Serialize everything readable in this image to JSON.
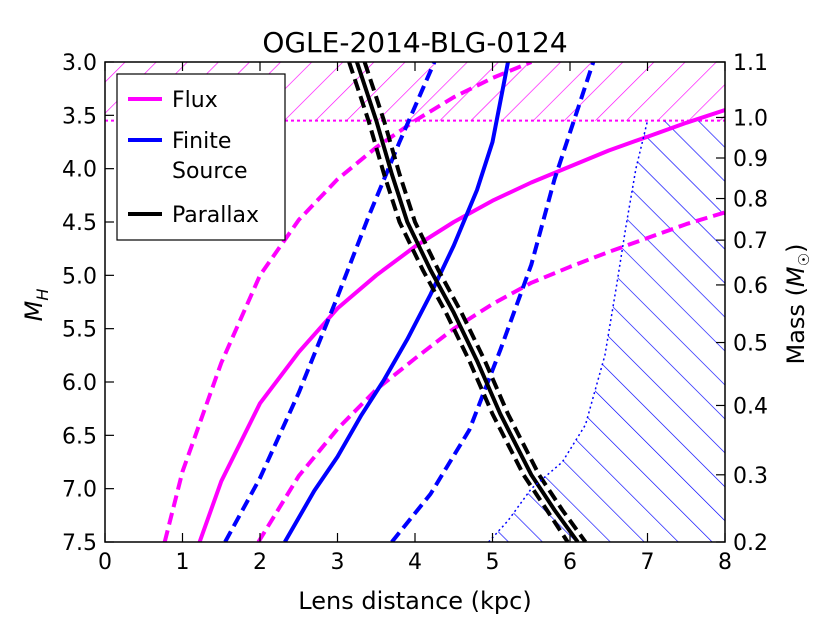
{
  "chart_data": {
    "type": "line",
    "title": "OGLE-2014-BLG-0124",
    "xlabel": "Lens distance (kpc)",
    "ylabel": "M",
    "ylabel_sub": "H",
    "y2label_text": "Mass (",
    "y2label_math": "M",
    "y2label_sub": "☉",
    "y2label_close": ")",
    "xlim": [
      0,
      8
    ],
    "ylim": [
      7.5,
      3.0
    ],
    "y_inverted": true,
    "xticks": [
      "0",
      "1",
      "2",
      "3",
      "4",
      "5",
      "6",
      "7",
      "8"
    ],
    "yticks": [
      "3.0",
      "3.5",
      "4.0",
      "4.5",
      "5.0",
      "5.5",
      "6.0",
      "6.5",
      "7.0",
      "7.5"
    ],
    "y2ticks": [
      {
        "label": "1.1",
        "mh": 3.0
      },
      {
        "label": "1.0",
        "mh": 3.52
      },
      {
        "label": "0.9",
        "mh": 3.9
      },
      {
        "label": "0.8",
        "mh": 4.28
      },
      {
        "label": "0.7",
        "mh": 4.67
      },
      {
        "label": "0.6",
        "mh": 5.09
      },
      {
        "label": "0.5",
        "mh": 5.63
      },
      {
        "label": "0.4",
        "mh": 6.22
      },
      {
        "label": "0.3",
        "mh": 6.87
      },
      {
        "label": "0.2",
        "mh": 7.5
      }
    ],
    "grid": false,
    "legend_position": "upper-left",
    "legend": [
      {
        "label": "Flux",
        "color": "#ff00ff"
      },
      {
        "label": "Finite\nSource",
        "color": "#0000ff"
      },
      {
        "label": "Parallax",
        "color": "#000000"
      }
    ],
    "series": [
      {
        "style": "solid",
        "color": "#ff00ff",
        "points": [
          [
            1.22,
            7.5
          ],
          [
            1.5,
            6.93
          ],
          [
            2.0,
            6.2
          ],
          [
            2.5,
            5.72
          ],
          [
            3.0,
            5.31
          ],
          [
            3.5,
            5.0
          ],
          [
            4.0,
            4.73
          ],
          [
            4.5,
            4.5
          ],
          [
            5.0,
            4.3
          ],
          [
            5.5,
            4.13
          ],
          [
            6.0,
            3.98
          ],
          [
            6.5,
            3.83
          ],
          [
            7.0,
            3.7
          ],
          [
            7.5,
            3.57
          ],
          [
            8.0,
            3.45
          ]
        ]
      },
      {
        "style": "dashed",
        "color": "#ff00ff",
        "points": [
          [
            0.77,
            7.5
          ],
          [
            1.0,
            6.84
          ],
          [
            1.5,
            5.82
          ],
          [
            2.0,
            5.0
          ],
          [
            2.5,
            4.48
          ],
          [
            3.0,
            4.1
          ],
          [
            3.5,
            3.8
          ],
          [
            4.0,
            3.55
          ],
          [
            4.5,
            3.33
          ],
          [
            5.0,
            3.15
          ],
          [
            5.5,
            3.0
          ]
        ]
      },
      {
        "style": "dashed",
        "color": "#ff00ff",
        "points": [
          [
            1.98,
            7.5
          ],
          [
            2.5,
            6.88
          ],
          [
            3.0,
            6.44
          ],
          [
            3.5,
            6.07
          ],
          [
            4.0,
            5.78
          ],
          [
            4.5,
            5.5
          ],
          [
            5.0,
            5.27
          ],
          [
            5.5,
            5.07
          ],
          [
            6.0,
            4.92
          ],
          [
            6.5,
            4.78
          ],
          [
            7.0,
            4.65
          ],
          [
            7.5,
            4.52
          ],
          [
            8.0,
            4.41
          ]
        ]
      },
      {
        "style": "solid",
        "color": "#0000ff",
        "points": [
          [
            2.32,
            7.5
          ],
          [
            2.7,
            7.02
          ],
          [
            3.0,
            6.7
          ],
          [
            3.3,
            6.32
          ],
          [
            3.6,
            5.98
          ],
          [
            3.9,
            5.6
          ],
          [
            4.2,
            5.18
          ],
          [
            4.5,
            4.72
          ],
          [
            4.8,
            4.2
          ],
          [
            5.0,
            3.75
          ],
          [
            5.2,
            3.0
          ]
        ]
      },
      {
        "style": "dashed",
        "color": "#0000ff",
        "points": [
          [
            1.55,
            7.5
          ],
          [
            2.0,
            6.9
          ],
          [
            2.5,
            6.1
          ],
          [
            3.0,
            5.2
          ],
          [
            3.4,
            4.45
          ],
          [
            3.8,
            3.75
          ],
          [
            4.1,
            3.25
          ],
          [
            4.25,
            3.0
          ]
        ]
      },
      {
        "style": "dashed",
        "color": "#0000ff",
        "points": [
          [
            3.7,
            7.5
          ],
          [
            4.2,
            7.05
          ],
          [
            4.7,
            6.45
          ],
          [
            5.1,
            5.7
          ],
          [
            5.5,
            4.9
          ],
          [
            5.8,
            4.1
          ],
          [
            6.05,
            3.55
          ],
          [
            6.3,
            3.0
          ]
        ]
      },
      {
        "style": "solid",
        "color": "#000000",
        "width": 4,
        "points": [
          [
            3.25,
            3.0
          ],
          [
            3.5,
            3.55
          ],
          [
            3.7,
            4.05
          ],
          [
            3.9,
            4.5
          ],
          [
            4.2,
            4.95
          ],
          [
            4.5,
            5.35
          ],
          [
            4.8,
            5.8
          ],
          [
            5.1,
            6.3
          ],
          [
            5.5,
            6.87
          ],
          [
            5.8,
            7.2
          ],
          [
            6.1,
            7.5
          ]
        ]
      },
      {
        "style": "dashed",
        "color": "#000000",
        "width": 4,
        "points": [
          [
            3.15,
            3.0
          ],
          [
            3.4,
            3.55
          ],
          [
            3.6,
            4.05
          ],
          [
            3.8,
            4.5
          ],
          [
            4.1,
            4.95
          ],
          [
            4.4,
            5.35
          ],
          [
            4.7,
            5.8
          ],
          [
            5.0,
            6.3
          ],
          [
            5.4,
            6.87
          ],
          [
            5.7,
            7.2
          ],
          [
            5.97,
            7.5
          ]
        ]
      },
      {
        "style": "dashed",
        "color": "#000000",
        "width": 4,
        "points": [
          [
            3.35,
            3.0
          ],
          [
            3.6,
            3.55
          ],
          [
            3.8,
            4.05
          ],
          [
            4.0,
            4.5
          ],
          [
            4.3,
            4.95
          ],
          [
            4.6,
            5.35
          ],
          [
            4.9,
            5.8
          ],
          [
            5.2,
            6.3
          ],
          [
            5.6,
            6.87
          ],
          [
            5.9,
            7.2
          ],
          [
            6.2,
            7.5
          ]
        ]
      },
      {
        "style": "dotted",
        "color": "#0000ff",
        "width": 1.5,
        "points": [
          [
            4.95,
            7.5
          ],
          [
            5.2,
            7.3
          ],
          [
            5.5,
            7.0
          ],
          [
            5.9,
            6.75
          ],
          [
            6.2,
            6.4
          ],
          [
            6.45,
            5.75
          ],
          [
            6.6,
            5.1
          ],
          [
            6.72,
            4.55
          ],
          [
            6.85,
            4.0
          ],
          [
            7.0,
            3.55
          ]
        ]
      }
    ],
    "regions": [
      {
        "name": "excluded-bright-region",
        "color": "#ff00ff",
        "hatch": "backslash",
        "x": [
          0,
          8
        ],
        "y": [
          3.0,
          3.55
        ]
      },
      {
        "name": "excluded-blue-region",
        "color": "#0000ff",
        "hatch": "slash",
        "boundary": [
          [
            4.95,
            7.5
          ],
          [
            5.2,
            7.3
          ],
          [
            5.5,
            7.0
          ],
          [
            5.9,
            6.75
          ],
          [
            6.2,
            6.4
          ],
          [
            6.45,
            5.75
          ],
          [
            6.6,
            5.1
          ],
          [
            6.72,
            4.55
          ],
          [
            6.85,
            4.0
          ],
          [
            7.0,
            3.55
          ],
          [
            8.0,
            3.55
          ],
          [
            8.0,
            7.5
          ]
        ]
      }
    ]
  }
}
